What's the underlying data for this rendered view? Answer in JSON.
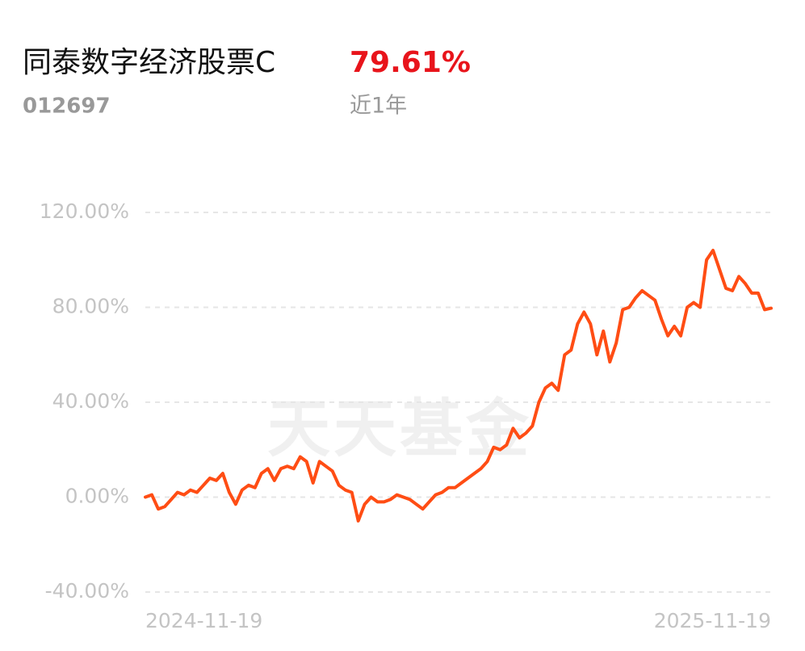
{
  "chart_data": {
    "type": "line",
    "title": "同泰数字经济股票C",
    "code": "012697",
    "return": {
      "value": 79.61,
      "label": "79.61%"
    },
    "period": "近1年",
    "watermark": "天天基金",
    "categories": [
      "2024-11-19",
      null,
      null,
      null,
      null,
      null,
      null,
      null,
      null,
      null,
      null,
      null,
      null,
      null,
      null,
      null,
      null,
      null,
      null,
      null,
      null,
      null,
      null,
      null,
      null,
      null,
      null,
      null,
      null,
      null,
      null,
      null,
      null,
      null,
      null,
      null,
      null,
      null,
      null,
      null,
      null,
      null,
      null,
      null,
      null,
      null,
      null,
      null,
      null,
      null,
      null,
      null,
      null,
      null,
      null,
      null,
      null,
      null,
      null,
      null,
      null,
      null,
      null,
      null,
      null,
      null,
      null,
      null,
      null,
      null,
      null,
      null,
      null,
      null,
      null,
      null,
      null,
      null,
      null,
      null,
      null,
      null,
      null,
      null,
      null,
      null,
      null,
      null,
      null,
      null,
      null,
      null,
      null,
      null,
      null,
      null,
      null,
      "2025-11-19"
    ],
    "series": [
      {
        "color": "#ff4d14",
        "values": [
          0,
          1,
          -5,
          -4,
          -1,
          2,
          1,
          3,
          2,
          5,
          8,
          7,
          10,
          2,
          -3,
          3,
          5,
          4,
          10,
          12,
          7,
          12,
          13,
          12,
          17,
          15,
          6,
          15,
          13,
          11,
          5,
          3,
          2,
          -10,
          -3,
          0,
          -2,
          -2,
          -1,
          1,
          0,
          -1,
          -3,
          -5,
          -2,
          1,
          2,
          4,
          4,
          6,
          8,
          10,
          12,
          15,
          21,
          20,
          22,
          29,
          25,
          27,
          30,
          40,
          46,
          48,
          45,
          60,
          62,
          73,
          78,
          73,
          60,
          70,
          57,
          65,
          79,
          80,
          84,
          87,
          85,
          83,
          75,
          68,
          72,
          68,
          80,
          82,
          80,
          100,
          104,
          96,
          88,
          87,
          93,
          90,
          86,
          86,
          79,
          79.61
        ]
      }
    ],
    "ylim": [
      -40,
      120
    ],
    "yticks": [
      {
        "value": -40,
        "label": "-40.00%"
      },
      {
        "value": 0,
        "label": "0.00%"
      },
      {
        "value": 40,
        "label": "40.00%"
      },
      {
        "value": 80,
        "label": "80.00%"
      },
      {
        "value": 120,
        "label": "120.00%"
      }
    ],
    "grid": true
  }
}
